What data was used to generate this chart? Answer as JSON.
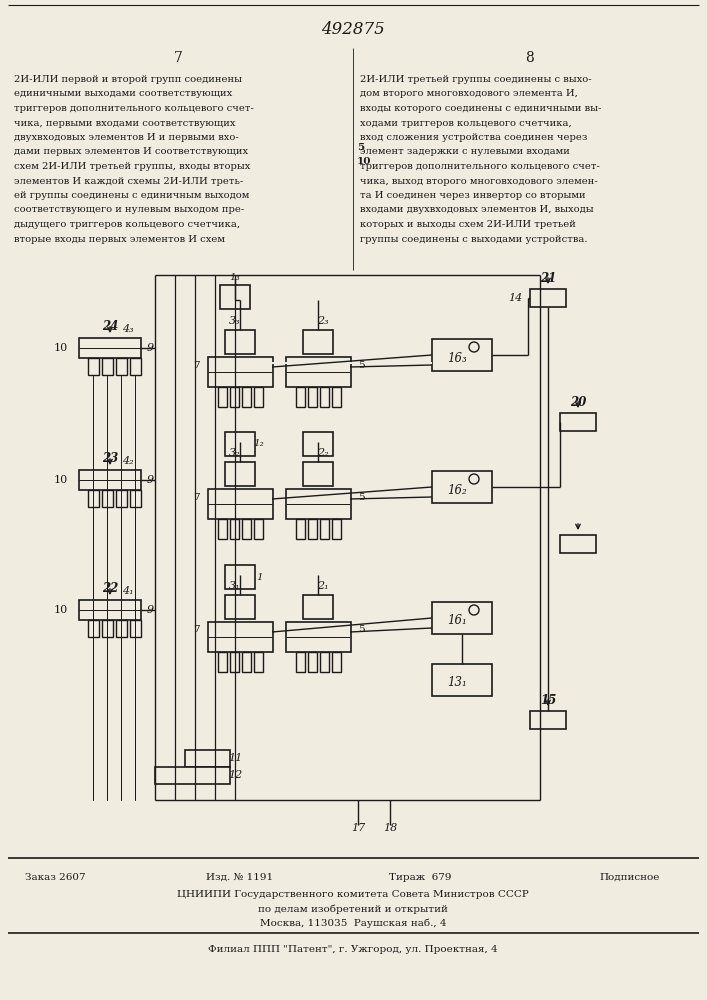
{
  "title": "492875",
  "page_left": "7",
  "page_right": "8",
  "bg_color": "#f0ece0",
  "text_color": "#1a1a1a",
  "left_col": "2И-ИЛИ первой и второй групп соединены\nединичными выходами соответствующих\nтриггеров дополнительного кольцевого счет-\nчика, первыми входами соответствующих\nдвухвходовых элементов И и первыми вхо-\nдами первых элементов И соответствующих\nсхем 2И-ИЛИ третьей группы, входы вторых\nэлементов И каждой схемы 2И-ИЛИ треть-\nей группы соединены с единичным выходом\nсоответствующего и нулевым выходом пре-\nдыдущего триггеров кольцевого счетчика,\nвторые входы первых элементов И схем",
  "right_col": "2И-ИЛИ третьей группы соединены с выхо-\nдом второго многовходового элемента И,\nвходы которого соединены с единичными вы-\nходами триггеров кольцевого счетчика,\nвход сложения устройства соединен через\nэлемент задержки с нулевыми входами\nтриггеров дополнительного кольцевого счет-\nчика, выход второго многовходового элемен-\nта И соединен через инвертор со вторыми\nвходами двухвходовых элементов И, выходы\nкоторых и выходы схем 2И-ИЛИ третьей\nгруппы соединены с выходами устройства.",
  "footer_order": "Заказ 2607",
  "footer_izd": "Изд. № 1191",
  "footer_tirazh": "Тираж  679",
  "footer_podp": "Подписное",
  "footer_cniipi": "ЦНИИПИ Государственного комитета Совета Министров СССР",
  "footer_po": "по делам изобретений и открытий",
  "footer_msk": "Москва, 113035  Раушская наб., 4",
  "footer_fil": "Филиал ППП \"Патент\", г. Ужгород, ул. Проектная, 4"
}
